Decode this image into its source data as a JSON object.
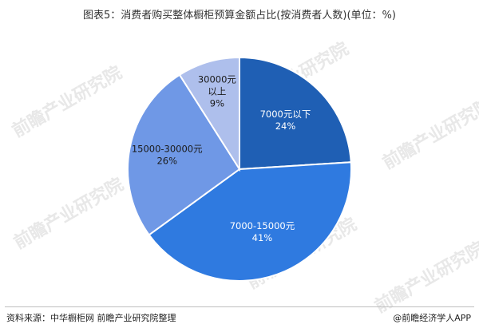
{
  "title": "图表5：消费者购买整体橱柜预算金额占比(按消费者人数)(单位：%)",
  "watermark": "前瞻产业研究院",
  "footer": {
    "source": "资料来源：中华橱柜网 前瞻产业研究院整理",
    "brand": "@前瞻经济学人APP"
  },
  "colors": {
    "slice1": "#1f5fb4",
    "slice2": "#2f7ae0",
    "slice3": "#6f98e6",
    "slice4": "#aebfec"
  },
  "chart_data": {
    "type": "pie",
    "title": "图表5：消费者购买整体橱柜预算金额占比(按消费者人数)(单位：%)",
    "unit": "%",
    "start": "12 o'clock, clockwise",
    "slices": [
      {
        "label": "7000元以下",
        "value": 24,
        "value_label": "24%",
        "color": "#1f5fb4"
      },
      {
        "label": "7000-15000元",
        "value": 41,
        "value_label": "41%",
        "color": "#2f7ae0"
      },
      {
        "label": "15000-30000元",
        "value": 26,
        "value_label": "26%",
        "color": "#6f98e6"
      },
      {
        "label": "30000元以上",
        "value": 9,
        "value_label": "9%",
        "color": "#aebfec"
      }
    ]
  }
}
